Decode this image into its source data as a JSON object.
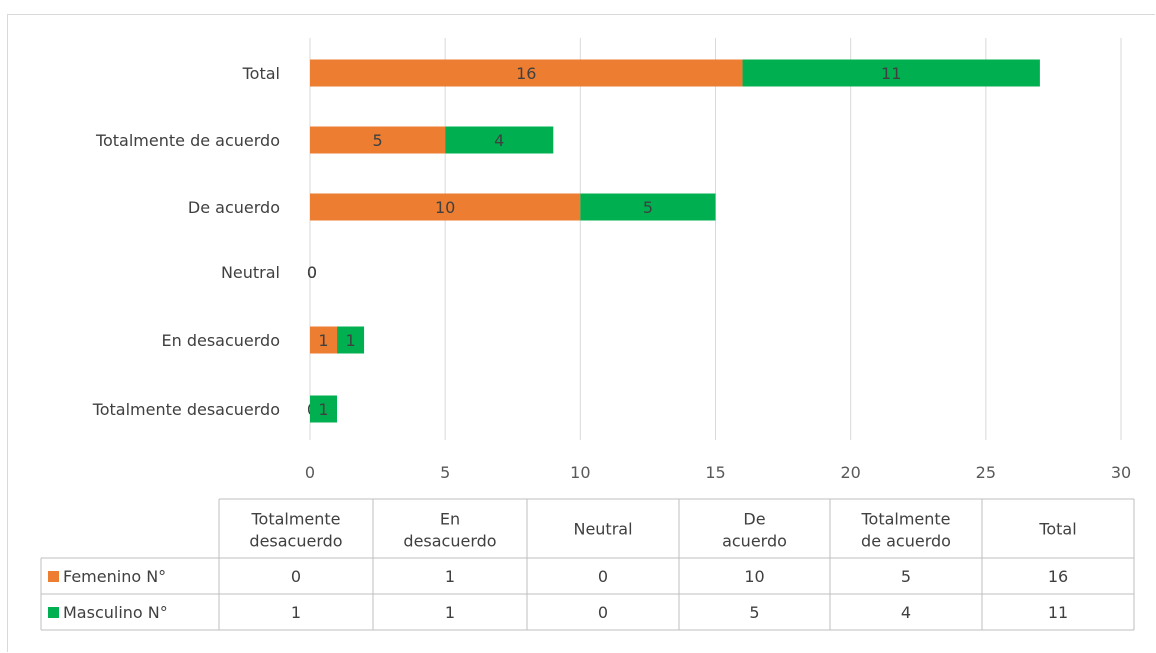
{
  "chart_data": {
    "type": "bar",
    "orientation": "horizontal",
    "stacked": true,
    "categories": [
      "Total",
      "Totalmente de acuerdo",
      "De acuerdo",
      "Neutral",
      "En desacuerdo",
      "Totalmente desacuerdo"
    ],
    "series": [
      {
        "name": "Femenino  N°",
        "color": "#ED7D31",
        "values": [
          16,
          5,
          10,
          0,
          1,
          0
        ]
      },
      {
        "name": "Masculino N°",
        "color": "#00B050",
        "values": [
          11,
          4,
          5,
          0,
          1,
          1
        ]
      }
    ],
    "xlim": [
      0,
      30
    ],
    "x_ticks": [
      "0",
      "5",
      "10",
      "15",
      "20",
      "25",
      "30"
    ],
    "grid": "vertical",
    "legend": "data-table",
    "table": {
      "columns": [
        "Totalmente desacuerdo",
        "En desacuerdo",
        "Neutral",
        "De acuerdo",
        "Totalmente de acuerdo",
        "Total"
      ],
      "rows": [
        {
          "label": "Femenino  N°",
          "color": "#ED7D31",
          "values": [
            "0",
            "1",
            "0",
            "10",
            "5",
            "16"
          ]
        },
        {
          "label": "Masculino N°",
          "color": "#00B050",
          "values": [
            "1",
            "1",
            "0",
            "5",
            "4",
            "11"
          ]
        }
      ]
    }
  }
}
